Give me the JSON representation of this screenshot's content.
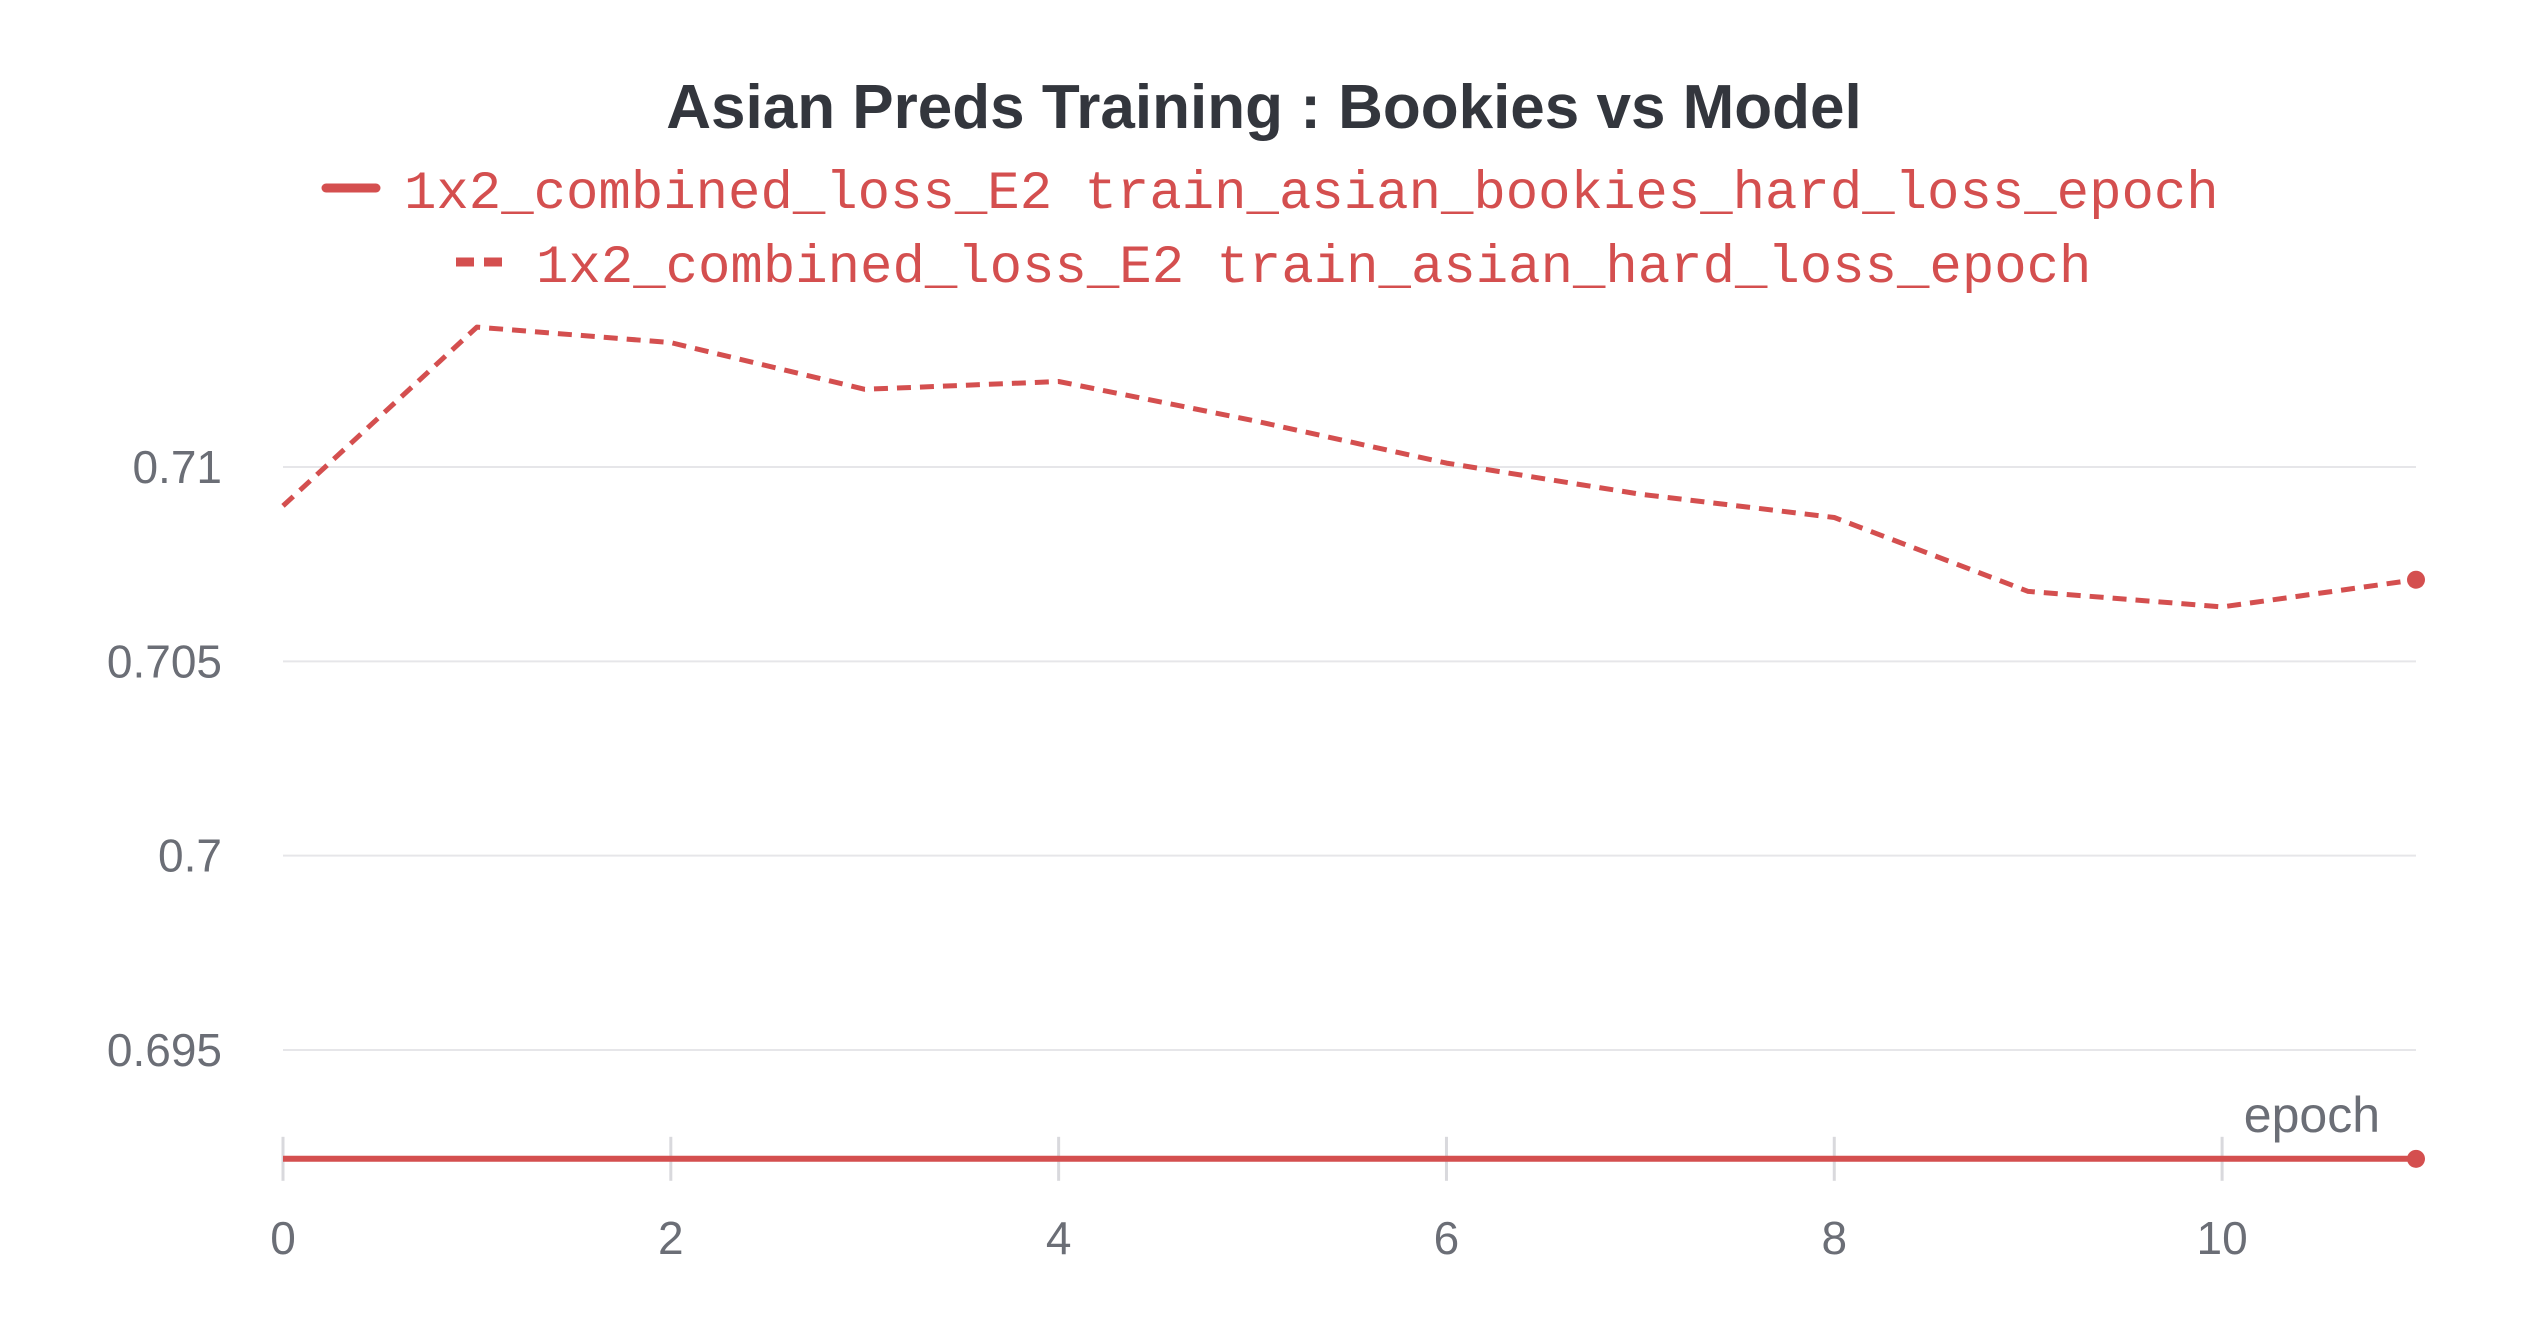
{
  "chart_data": {
    "type": "line",
    "title": "Asian Preds Training : Bookies vs Model",
    "xlabel": "epoch",
    "ylabel": "",
    "xlim": [
      0,
      11
    ],
    "ylim": [
      0.6921,
      0.7137
    ],
    "x_ticks": [
      0,
      2,
      4,
      6,
      8,
      10
    ],
    "y_ticks": [
      0.695,
      0.7,
      0.705,
      0.71
    ],
    "y_tick_labels": [
      "0.695",
      "0.7",
      "0.705",
      "0.71"
    ],
    "grid": true,
    "legend_position": "top-center",
    "color": "#d44f4f",
    "series": [
      {
        "name": "1x2_combined_loss_E2 train_asian_bookies_hard_loss_epoch",
        "style": "solid",
        "x": [
          0,
          1,
          2,
          3,
          4,
          5,
          6,
          7,
          8,
          9,
          10,
          11
        ],
        "values": [
          0.6922,
          0.6922,
          0.6922,
          0.6922,
          0.6922,
          0.6922,
          0.6922,
          0.6922,
          0.6922,
          0.6922,
          0.6922,
          0.6922
        ]
      },
      {
        "name": "1x2_combined_loss_E2 train_asian_hard_loss_epoch",
        "style": "dashed",
        "x": [
          0,
          1,
          2,
          3,
          4,
          5,
          6,
          7,
          8,
          9,
          10,
          11
        ],
        "values": [
          0.709,
          0.7136,
          0.7132,
          0.712,
          0.7122,
          0.7112,
          0.7101,
          0.7093,
          0.7087,
          0.7068,
          0.7064,
          0.7071
        ]
      }
    ]
  }
}
